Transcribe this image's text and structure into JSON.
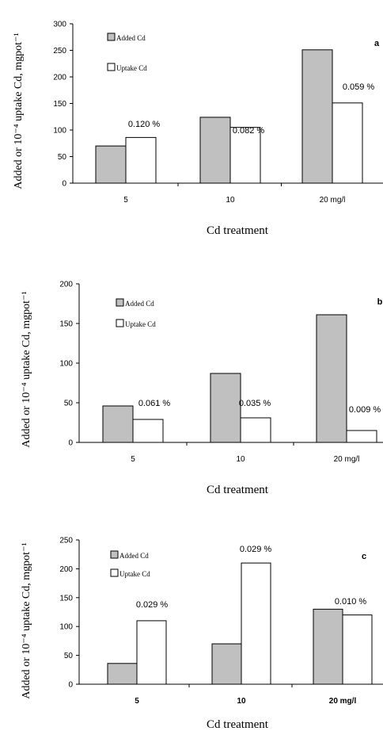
{
  "colors": {
    "added": "#c0c0c0",
    "uptake": "#ffffff",
    "stroke": "#000000"
  },
  "chart_data": [
    {
      "type": "bar",
      "panel_letter": "a",
      "categories": [
        "5",
        "10",
        "20 mg/l"
      ],
      "series": [
        {
          "name": "Added Cd",
          "values": [
            70,
            124,
            251
          ]
        },
        {
          "name": "Uptake Cd",
          "values": [
            86,
            105,
            151
          ]
        }
      ],
      "annotations": [
        "0.120 %",
        "0.082 %",
        "0.059 %"
      ],
      "yticks": [
        0,
        50,
        100,
        150,
        200,
        250,
        300
      ],
      "ylim": [
        0,
        300
      ],
      "xlabel": "Cd treatment",
      "ylabel": "Added or 10⁻⁴ uptake Cd, mgpot⁻¹",
      "legend": "top-left",
      "bold_ticks": false
    },
    {
      "type": "bar",
      "panel_letter": "b",
      "categories": [
        "5",
        "10",
        "20 mg/l"
      ],
      "series": [
        {
          "name": "Added Cd",
          "values": [
            46,
            87,
            161
          ]
        },
        {
          "name": "Uptake Cd",
          "values": [
            29,
            31,
            15
          ]
        }
      ],
      "annotations": [
        "0.061 %",
        "0.035 %",
        "0.009 %"
      ],
      "yticks": [
        0,
        50,
        100,
        150,
        200
      ],
      "ylim": [
        0,
        200
      ],
      "xlabel": "Cd treatment",
      "ylabel": "Added or 10⁻⁴ uptake Cd, mgpot⁻¹",
      "legend": "top-left",
      "bold_ticks": false
    },
    {
      "type": "bar",
      "panel_letter": "c",
      "categories": [
        "5",
        "10",
        "20 mg/l"
      ],
      "series": [
        {
          "name": "Added Cd",
          "values": [
            36,
            70,
            130
          ]
        },
        {
          "name": "Uptake Cd",
          "values": [
            110,
            210,
            120
          ]
        }
      ],
      "annotations": [
        "0.029 %",
        "0.029 %",
        "0.010 %"
      ],
      "yticks": [
        0,
        50,
        100,
        150,
        200,
        250
      ],
      "ylim": [
        0,
        250
      ],
      "xlabel": "Cd treatment",
      "ylabel": "Added or 10⁻⁴ uptake Cd, mgpot⁻¹",
      "legend": "top-left",
      "bold_ticks": true
    }
  ]
}
